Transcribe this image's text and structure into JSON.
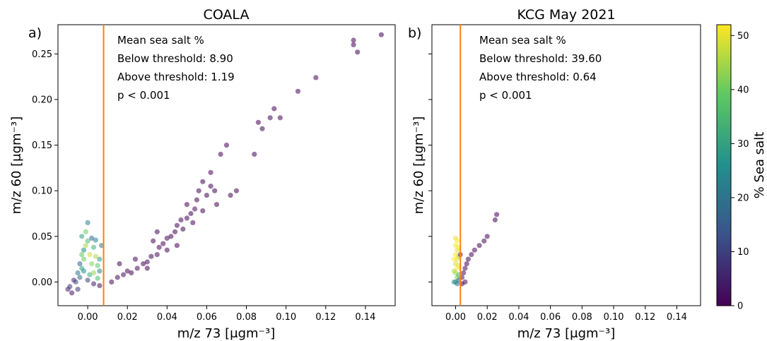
{
  "chart_data": [
    {
      "type": "scatter",
      "panel_label": "a)",
      "title": "COALA",
      "xlabel": "m/z 73 [μgm⁻³]",
      "ylabel": "m/z 60 [μgm⁻³]",
      "xlim": [
        -0.015,
        0.155
      ],
      "ylim": [
        -0.026,
        0.282
      ],
      "xticks": [
        0.0,
        0.02,
        0.04,
        0.06,
        0.08,
        0.1,
        0.12,
        0.14
      ],
      "xtick_labels": [
        "0.00",
        "0.02",
        "0.04",
        "0.06",
        "0.08",
        "0.10",
        "0.12",
        "0.14"
      ],
      "yticks": [
        0.0,
        0.05,
        0.1,
        0.15,
        0.2,
        0.25
      ],
      "ytick_labels": [
        "0.00",
        "0.05",
        "0.10",
        "0.15",
        "0.20",
        "0.25"
      ],
      "threshold_x": 0.008,
      "threshold_color": "#ff7f0e",
      "annotations": [
        "Mean sea salt %",
        "Below threshold: 8.90",
        "Above threshold: 1.19",
        "p < 0.001"
      ],
      "colorbar_label": "% Sea salt",
      "color_scale": "viridis",
      "points": [
        [
          -0.01,
          -0.008,
          5
        ],
        [
          -0.008,
          -0.012,
          3
        ],
        [
          -0.009,
          -0.005,
          8
        ],
        [
          -0.006,
          0.0,
          12
        ],
        [
          -0.005,
          0.01,
          20
        ],
        [
          -0.004,
          0.02,
          15
        ],
        [
          -0.003,
          0.015,
          30
        ],
        [
          -0.002,
          0.025,
          40
        ],
        [
          -0.002,
          0.035,
          25
        ],
        [
          -0.001,
          0.04,
          45
        ],
        [
          0.0,
          0.045,
          35
        ],
        [
          -0.003,
          0.05,
          30
        ],
        [
          -0.001,
          0.055,
          40
        ],
        [
          0.0,
          0.065,
          22
        ],
        [
          0.001,
          0.03,
          48
        ],
        [
          0.002,
          0.02,
          42
        ],
        [
          0.003,
          0.038,
          33
        ],
        [
          0.004,
          0.028,
          46
        ],
        [
          0.005,
          0.018,
          38
        ],
        [
          0.006,
          0.025,
          28
        ],
        [
          0.007,
          0.04,
          20
        ],
        [
          -0.004,
          0.005,
          18
        ],
        [
          -0.002,
          0.012,
          26
        ],
        [
          0.001,
          0.008,
          32
        ],
        [
          0.003,
          0.01,
          44
        ],
        [
          0.005,
          0.004,
          36
        ],
        [
          0.006,
          0.012,
          24
        ],
        [
          0.002,
          0.048,
          17
        ],
        [
          -0.003,
          0.03,
          39
        ],
        [
          0.004,
          0.046,
          23
        ],
        [
          0.0,
          0.002,
          10
        ],
        [
          -0.007,
          0.002,
          6
        ],
        [
          0.003,
          -0.002,
          4
        ],
        [
          0.006,
          -0.004,
          2
        ],
        [
          -0.005,
          -0.008,
          7
        ],
        [
          0.012,
          0.0,
          1
        ],
        [
          0.015,
          0.005,
          1
        ],
        [
          0.018,
          0.008,
          2
        ],
        [
          0.02,
          0.012,
          1
        ],
        [
          0.022,
          0.01,
          0
        ],
        [
          0.025,
          0.015,
          1
        ],
        [
          0.028,
          0.02,
          0
        ],
        [
          0.03,
          0.022,
          1
        ],
        [
          0.032,
          0.028,
          0
        ],
        [
          0.035,
          0.03,
          1
        ],
        [
          0.036,
          0.038,
          0
        ],
        [
          0.038,
          0.042,
          0
        ],
        [
          0.04,
          0.048,
          1
        ],
        [
          0.042,
          0.05,
          0
        ],
        [
          0.044,
          0.055,
          0
        ],
        [
          0.045,
          0.062,
          1
        ],
        [
          0.047,
          0.068,
          0
        ],
        [
          0.05,
          0.07,
          0
        ],
        [
          0.052,
          0.075,
          0
        ],
        [
          0.054,
          0.08,
          1
        ],
        [
          0.055,
          0.09,
          0
        ],
        [
          0.056,
          0.1,
          0
        ],
        [
          0.058,
          0.11,
          0
        ],
        [
          0.06,
          0.095,
          0
        ],
        [
          0.062,
          0.12,
          0
        ],
        [
          0.064,
          0.1,
          0
        ],
        [
          0.065,
          0.085,
          0
        ],
        [
          0.067,
          0.14,
          0
        ],
        [
          0.07,
          0.15,
          0
        ],
        [
          0.072,
          0.095,
          0
        ],
        [
          0.075,
          0.1,
          0
        ],
        [
          0.084,
          0.14,
          0
        ],
        [
          0.086,
          0.175,
          0
        ],
        [
          0.088,
          0.168,
          0
        ],
        [
          0.092,
          0.18,
          0
        ],
        [
          0.094,
          0.19,
          0
        ],
        [
          0.097,
          0.18,
          0
        ],
        [
          0.106,
          0.209,
          0
        ],
        [
          0.115,
          0.224,
          0
        ],
        [
          0.134,
          0.265,
          0
        ],
        [
          0.134,
          0.26,
          0
        ],
        [
          0.136,
          0.252,
          0
        ],
        [
          0.148,
          0.271,
          0
        ],
        [
          0.016,
          0.02,
          0
        ],
        [
          0.024,
          0.025,
          0
        ],
        [
          0.033,
          0.045,
          0
        ],
        [
          0.048,
          0.058,
          0
        ],
        [
          0.053,
          0.065,
          0
        ],
        [
          0.058,
          0.078,
          0
        ],
        [
          0.062,
          0.105,
          0
        ],
        [
          0.04,
          0.035,
          0
        ],
        [
          0.03,
          0.015,
          0
        ],
        [
          0.045,
          0.04,
          0
        ],
        [
          0.035,
          0.055,
          0
        ],
        [
          0.05,
          0.085,
          0
        ]
      ]
    },
    {
      "type": "scatter",
      "panel_label": "b)",
      "title": "KCG May 2021",
      "xlabel": "m/z 73 [μgm⁻³]",
      "ylabel": "m/z 60 [μgm⁻³]",
      "xlim": [
        -0.015,
        0.155
      ],
      "ylim": [
        -0.026,
        0.282
      ],
      "xticks": [
        0.0,
        0.02,
        0.04,
        0.06,
        0.08,
        0.1,
        0.12,
        0.14
      ],
      "xtick_labels": [
        "0.00",
        "0.02",
        "0.04",
        "0.06",
        "0.08",
        "0.10",
        "0.12",
        "0.14"
      ],
      "yticks": [
        0.0,
        0.05,
        0.1,
        0.15,
        0.2,
        0.25
      ],
      "ytick_labels": [
        "",
        "",
        "",
        "",
        "",
        ""
      ],
      "threshold_x": 0.003,
      "threshold_color": "#ff7f0e",
      "annotations": [
        "Mean sea salt %",
        "Below threshold: 39.60",
        "Above threshold: 0.64",
        "p < 0.001"
      ],
      "colorbar_label": "% Sea salt",
      "color_scale": "viridis",
      "points": [
        [
          0.0,
          0.048,
          50
        ],
        [
          0.001,
          0.045,
          52
        ],
        [
          0.0,
          0.04,
          51
        ],
        [
          0.001,
          0.035,
          49
        ],
        [
          0.0,
          0.03,
          52
        ],
        [
          0.001,
          0.025,
          50
        ],
        [
          0.0,
          0.02,
          48
        ],
        [
          0.001,
          0.015,
          52
        ],
        [
          0.0,
          0.01,
          45
        ],
        [
          0.001,
          0.005,
          40
        ],
        [
          0.0,
          0.0,
          30
        ],
        [
          0.001,
          -0.002,
          20
        ],
        [
          0.002,
          0.038,
          51
        ],
        [
          0.002,
          0.028,
          47
        ],
        [
          0.002,
          0.018,
          50
        ],
        [
          -0.001,
          0.025,
          52
        ],
        [
          -0.001,
          0.012,
          46
        ],
        [
          0.002,
          0.008,
          35
        ],
        [
          -0.001,
          0.0,
          25
        ],
        [
          0.002,
          0.002,
          15
        ],
        [
          0.004,
          0.005,
          2
        ],
        [
          0.005,
          0.01,
          1
        ],
        [
          0.006,
          0.015,
          1
        ],
        [
          0.007,
          0.02,
          0
        ],
        [
          0.008,
          0.025,
          0
        ],
        [
          0.01,
          0.03,
          0
        ],
        [
          0.012,
          0.035,
          0
        ],
        [
          0.015,
          0.04,
          0
        ],
        [
          0.018,
          0.045,
          1
        ],
        [
          0.02,
          0.05,
          0
        ],
        [
          0.026,
          0.074,
          0
        ],
        [
          0.025,
          0.068,
          0
        ],
        [
          0.004,
          -0.002,
          0
        ],
        [
          0.006,
          0.0,
          1
        ],
        [
          0.003,
          0.03,
          5
        ]
      ]
    }
  ],
  "colorbar": {
    "label": "% Sea salt",
    "ticks": [
      0,
      10,
      20,
      30,
      40,
      50
    ],
    "tick_labels": [
      "0",
      "10",
      "20",
      "30",
      "40",
      "50"
    ],
    "max": 52
  }
}
